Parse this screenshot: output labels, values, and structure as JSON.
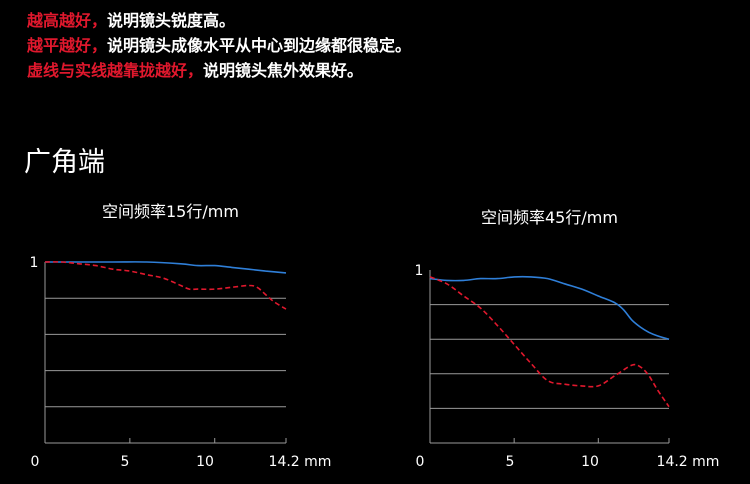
{
  "notes": [
    {
      "highlight": "越高越好，",
      "text": "说明镜头锐度高。"
    },
    {
      "highlight": "越平越好，",
      "text": "说明镜头成像水平从中心到边缘都很稳定。"
    },
    {
      "highlight": "虚线与实线越靠拢越好，",
      "text": "说明镜头焦外效果好。"
    }
  ],
  "section_title": "广角端",
  "colors": {
    "highlight": "#e0182d",
    "solid_series": "#2f7fd8",
    "dashed_series": "#e0182d",
    "grid": "#9a9a9a"
  },
  "chart_data": [
    {
      "type": "line",
      "title": "空间频率15行/mm",
      "xlabel": "",
      "ylabel": "",
      "x_ticks": [
        {
          "value": 0,
          "label": "0"
        },
        {
          "value": 5,
          "label": "5"
        },
        {
          "value": 10,
          "label": "10"
        },
        {
          "value": 14.2,
          "label": "14.2 mm"
        }
      ],
      "y_ticks": [
        {
          "value": 1,
          "label": "1"
        }
      ],
      "xlim": [
        0,
        14.2
      ],
      "ylim": [
        0,
        1
      ],
      "grid": true,
      "series": [
        {
          "style": "solid",
          "color": "#2f7fd8",
          "x": [
            0,
            2,
            4,
            6,
            8,
            9,
            10,
            11,
            12,
            13,
            14.2
          ],
          "y": [
            1.0,
            1.0,
            1.0,
            1.0,
            0.99,
            0.98,
            0.98,
            0.97,
            0.96,
            0.95,
            0.94
          ]
        },
        {
          "style": "dashed",
          "color": "#e0182d",
          "x": [
            0,
            1,
            2,
            3,
            4,
            5,
            6,
            7,
            8,
            8.5,
            9,
            10,
            11,
            12,
            12.5,
            13,
            13.5,
            14.2
          ],
          "y": [
            1.0,
            1.0,
            0.99,
            0.98,
            0.96,
            0.95,
            0.93,
            0.91,
            0.87,
            0.85,
            0.85,
            0.85,
            0.86,
            0.87,
            0.86,
            0.82,
            0.78,
            0.74
          ]
        }
      ]
    },
    {
      "type": "line",
      "title": "空间频率45行/mm",
      "xlabel": "",
      "ylabel": "",
      "x_ticks": [
        {
          "value": 0,
          "label": "0"
        },
        {
          "value": 5,
          "label": "5"
        },
        {
          "value": 10,
          "label": "10"
        },
        {
          "value": 14.2,
          "label": "14.2 mm"
        }
      ],
      "y_ticks": [
        {
          "value": 1,
          "label": "1"
        }
      ],
      "xlim": [
        0,
        14.2
      ],
      "ylim": [
        0,
        1
      ],
      "grid": true,
      "series": [
        {
          "style": "solid",
          "color": "#2f7fd8",
          "x": [
            0,
            1,
            2,
            3,
            4,
            5,
            6,
            7,
            8,
            9,
            10,
            11,
            11.5,
            12,
            12.5,
            13,
            13.5,
            14.2
          ],
          "y": [
            0.95,
            0.94,
            0.94,
            0.95,
            0.95,
            0.96,
            0.96,
            0.95,
            0.92,
            0.89,
            0.85,
            0.81,
            0.77,
            0.71,
            0.67,
            0.64,
            0.62,
            0.6
          ]
        },
        {
          "style": "dashed",
          "color": "#e0182d",
          "x": [
            0,
            1,
            2,
            3,
            4,
            5,
            6,
            7,
            8,
            9,
            10,
            11,
            12,
            12.5,
            13,
            13.5,
            14.2
          ],
          "y": [
            0.96,
            0.92,
            0.85,
            0.78,
            0.68,
            0.57,
            0.46,
            0.36,
            0.34,
            0.33,
            0.33,
            0.39,
            0.45,
            0.44,
            0.39,
            0.31,
            0.21
          ]
        }
      ]
    }
  ]
}
